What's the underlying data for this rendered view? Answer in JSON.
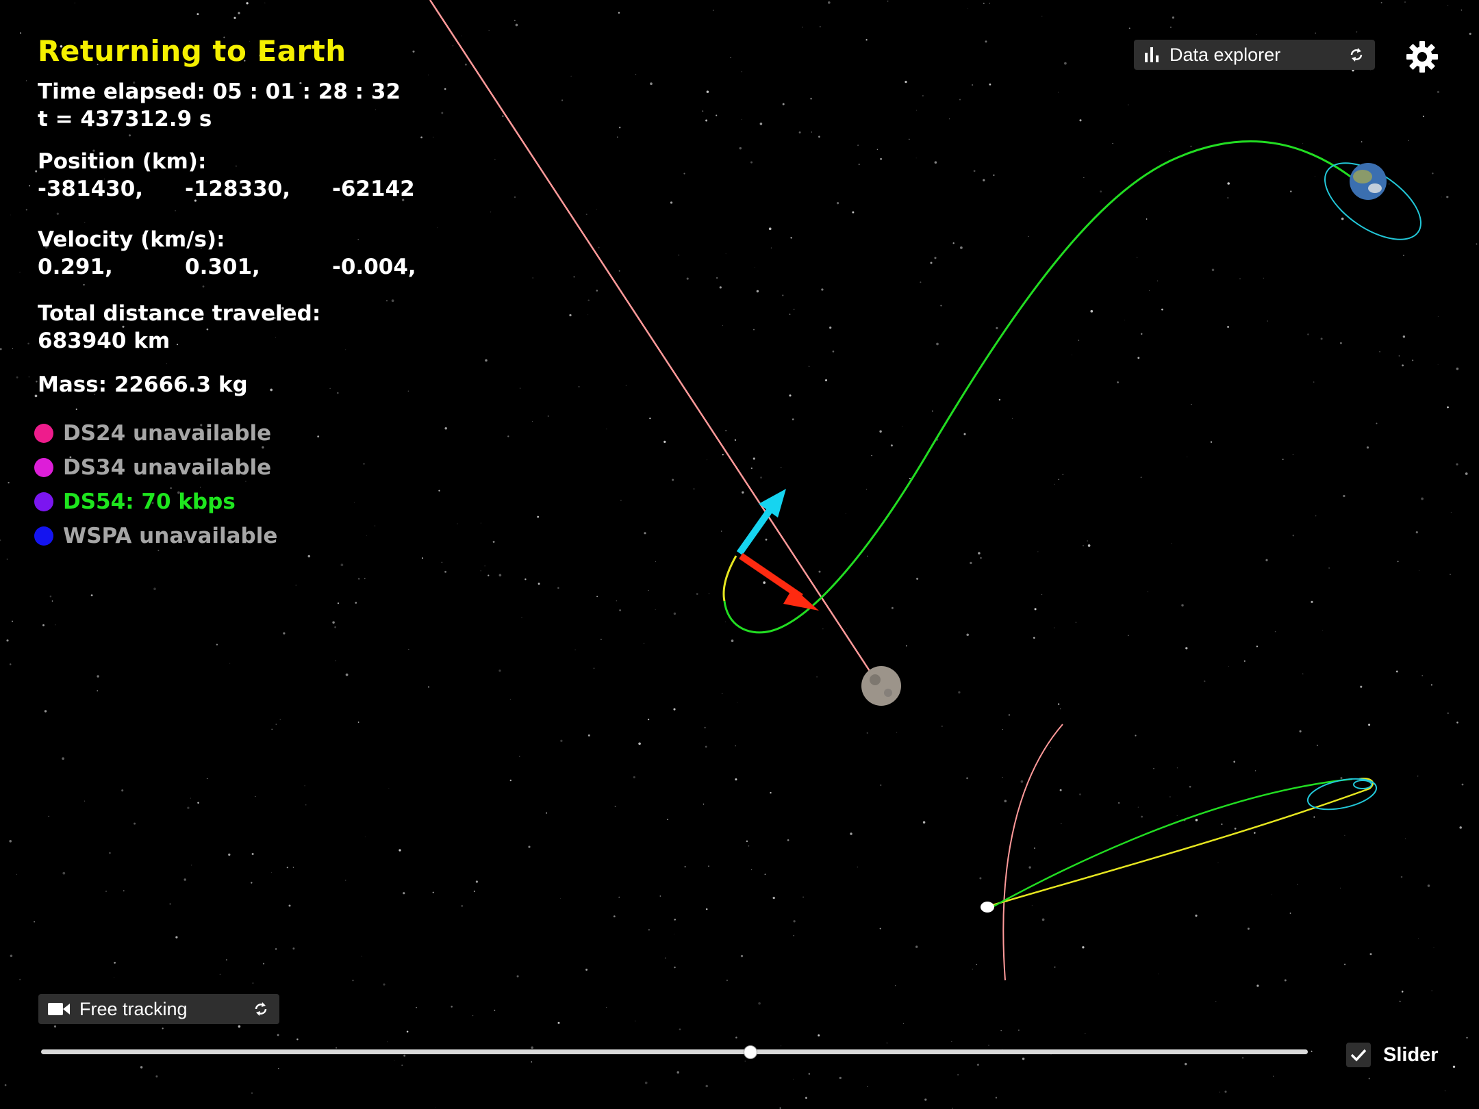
{
  "hud": {
    "title": "Returning to Earth",
    "time_elapsed": "Time elapsed: 05 : 01 : 28 : 32",
    "time_seconds": "t = 437312.9 s",
    "position_label": "Position (km):",
    "position": [
      "-381430,",
      "-128330,",
      "-62142"
    ],
    "velocity_label": "Velocity (km/s):",
    "velocity": [
      "0.291,",
      "0.301,",
      "-0.004,"
    ],
    "distance_label": "Total distance traveled:",
    "distance_value": "683940 km",
    "mass": "Mass: 22666.3 kg"
  },
  "stations": [
    {
      "label": "DS24 unavailable",
      "dot_color": "#ee1c8c",
      "text_color": "#a6a6a6"
    },
    {
      "label": "DS34 unavailable",
      "dot_color": "#dd1ed8",
      "text_color": "#a6a6a6"
    },
    {
      "label": "DS54: 70 kbps",
      "dot_color": "#7b16f0",
      "text_color": "#1ee61e"
    },
    {
      "label": "WSPA unavailable",
      "dot_color": "#1414f0",
      "text_color": "#a6a6a6"
    }
  ],
  "toolbar": {
    "data_explorer_label": "Data explorer",
    "data_explorer_icon": "bar-chart-icon",
    "settings_icon": "gear-icon"
  },
  "camera": {
    "mode_label": "Free tracking",
    "mode_icon": "video-camera-icon"
  },
  "timeline": {
    "progress": 0.56,
    "slider_label": "Slider",
    "slider_checked": true
  },
  "colors": {
    "title": "#f5f000",
    "trajectory_green": "#22dd22",
    "trajectory_yellow": "#e6e620",
    "moon_path": "#ff9a9a",
    "orbit_cyan": "#22c7d8",
    "velocity_arrow": "#16d4f0",
    "direction_arrow": "#ff2a10"
  }
}
